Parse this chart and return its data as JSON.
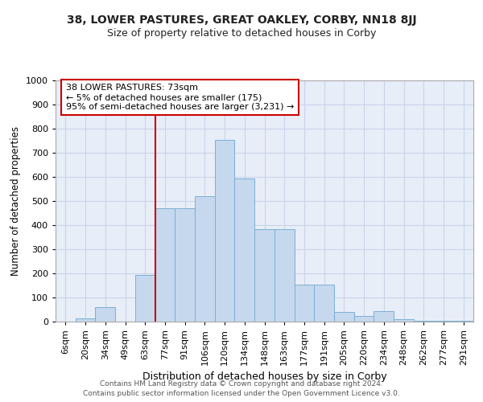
{
  "title1": "38, LOWER PASTURES, GREAT OAKLEY, CORBY, NN18 8JJ",
  "title2": "Size of property relative to detached houses in Corby",
  "xlabel": "Distribution of detached houses by size in Corby",
  "ylabel": "Number of detached properties",
  "categories": [
    "6sqm",
    "20sqm",
    "34sqm",
    "49sqm",
    "63sqm",
    "77sqm",
    "91sqm",
    "106sqm",
    "120sqm",
    "134sqm",
    "148sqm",
    "163sqm",
    "177sqm",
    "191sqm",
    "205sqm",
    "220sqm",
    "234sqm",
    "248sqm",
    "262sqm",
    "277sqm",
    "291sqm"
  ],
  "values": [
    0,
    12,
    60,
    0,
    195,
    470,
    470,
    520,
    755,
    595,
    385,
    385,
    155,
    155,
    40,
    25,
    45,
    10,
    3,
    3,
    3
  ],
  "bar_color": "#c6d8ee",
  "bar_edge_color": "#7aafd4",
  "vline_color": "#cc0000",
  "vline_x_idx": 5,
  "annotation_text": "38 LOWER PASTURES: 73sqm\n← 5% of detached houses are smaller (175)\n95% of semi-detached houses are larger (3,231) →",
  "annotation_box_color": "#ffffff",
  "annotation_box_edge": "#cc0000",
  "ylim": [
    0,
    1000
  ],
  "yticks": [
    0,
    100,
    200,
    300,
    400,
    500,
    600,
    700,
    800,
    900,
    1000
  ],
  "grid_color": "#c8d4e8",
  "bg_color": "#e8eef8",
  "footer": "Contains HM Land Registry data © Crown copyright and database right 2024.\nContains public sector information licensed under the Open Government Licence v3.0.",
  "title1_fontsize": 10,
  "title2_fontsize": 9,
  "xlabel_fontsize": 9,
  "ylabel_fontsize": 8.5,
  "tick_fontsize": 8,
  "ann_fontsize": 8,
  "footer_fontsize": 6.5
}
